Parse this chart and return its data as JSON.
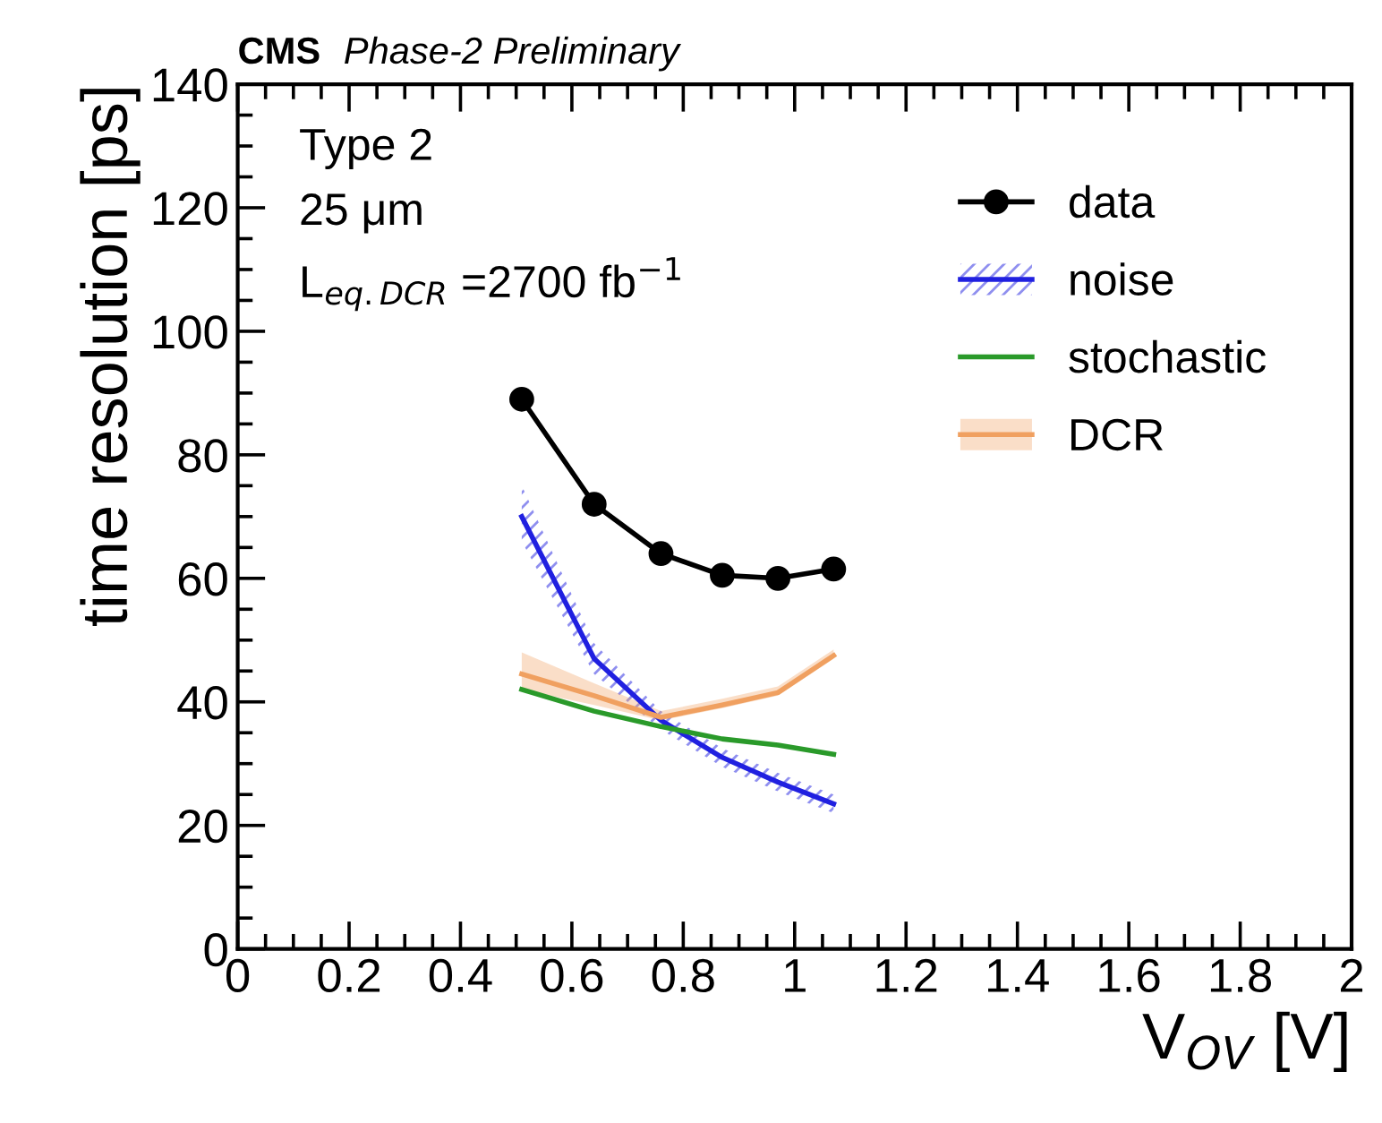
{
  "chart_data": {
    "type": "line",
    "title": "CMS",
    "subtitle": "Phase-2 Preliminary",
    "xlabel": "V$_{OV}$ [V]",
    "ylabel": "time resolution [ps]",
    "annotations": [
      "Type 2",
      "25 μm",
      "L$_{eq.DCR}$ =2700 fb$^{−1}$"
    ],
    "xlim": [
      0,
      2
    ],
    "xticks": [
      0,
      0.2,
      0.4,
      0.6,
      0.8,
      1,
      1.2,
      1.4,
      1.6,
      1.8,
      2
    ],
    "ylim": [
      0,
      140
    ],
    "yticks": [
      0,
      20,
      40,
      60,
      80,
      100,
      120,
      140
    ],
    "x": [
      0.51,
      0.64,
      0.76,
      0.87,
      0.97,
      1.07
    ],
    "grid": false,
    "legend": "top right",
    "series": [
      {
        "name": "data",
        "color": "#000000",
        "marker": "circle",
        "values": [
          89,
          72,
          64,
          60.5,
          60,
          61.5
        ]
      },
      {
        "name": "noise",
        "color": "#2020e0",
        "values": [
          70,
          47,
          37,
          31,
          27,
          23.5
        ],
        "lower": [
          66,
          44.5,
          35.5,
          29.5,
          25.5,
          22
        ],
        "upper": [
          75,
          49.5,
          38.5,
          32.5,
          28.5,
          25
        ]
      },
      {
        "name": "stochastic",
        "color": "#2a9a2a",
        "values": [
          42,
          38.5,
          36,
          34,
          33,
          31.5
        ]
      },
      {
        "name": "DCR",
        "color": "#f0a060",
        "values": [
          44.5,
          41,
          37.5,
          39.5,
          41.5,
          47.5
        ],
        "lower": [
          42,
          39.5,
          37,
          39,
          41,
          47
        ],
        "upper": [
          48,
          43,
          38.5,
          40.5,
          42.5,
          48.5
        ]
      }
    ]
  }
}
